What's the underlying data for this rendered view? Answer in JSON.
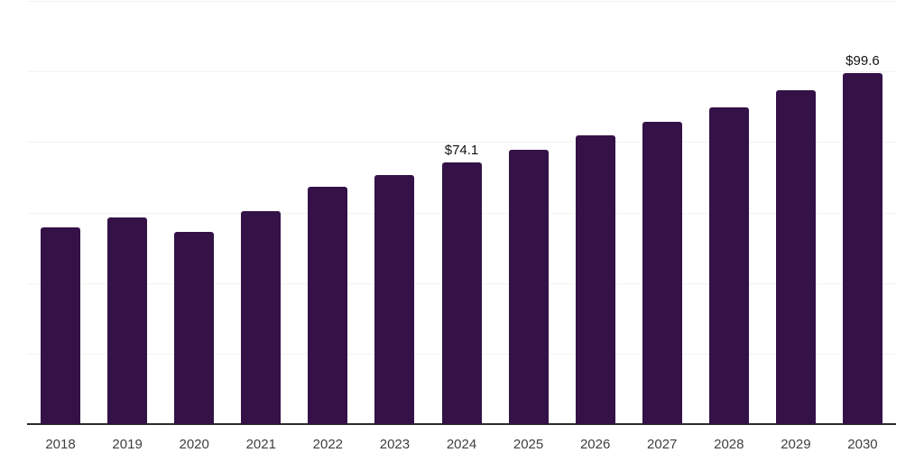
{
  "chart": {
    "background_color": "#ffffff",
    "bar_color": "#341147",
    "grid_color": "#f2f2f2",
    "axis_color": "#2b2b2b",
    "tick_label_color": "#404040",
    "data_label_color": "#111111"
  },
  "chart_data": {
    "type": "bar",
    "title": "",
    "xlabel": "",
    "ylabel": "",
    "categories": [
      "2018",
      "2019",
      "2020",
      "2021",
      "2022",
      "2023",
      "2024",
      "2025",
      "2026",
      "2027",
      "2028",
      "2029",
      "2030"
    ],
    "values": [
      55.8,
      58.5,
      54.5,
      60.5,
      67.2,
      70.6,
      74.1,
      77.9,
      82.0,
      85.8,
      89.9,
      94.6,
      99.6
    ],
    "ylim": [
      0,
      120
    ],
    "grid_step": 20,
    "grid": true,
    "legend": "none",
    "y_tick_labels": "none",
    "annotations": [
      {
        "category": "2024",
        "label": "$74.1"
      },
      {
        "category": "2030",
        "label": "$99.6"
      }
    ]
  }
}
